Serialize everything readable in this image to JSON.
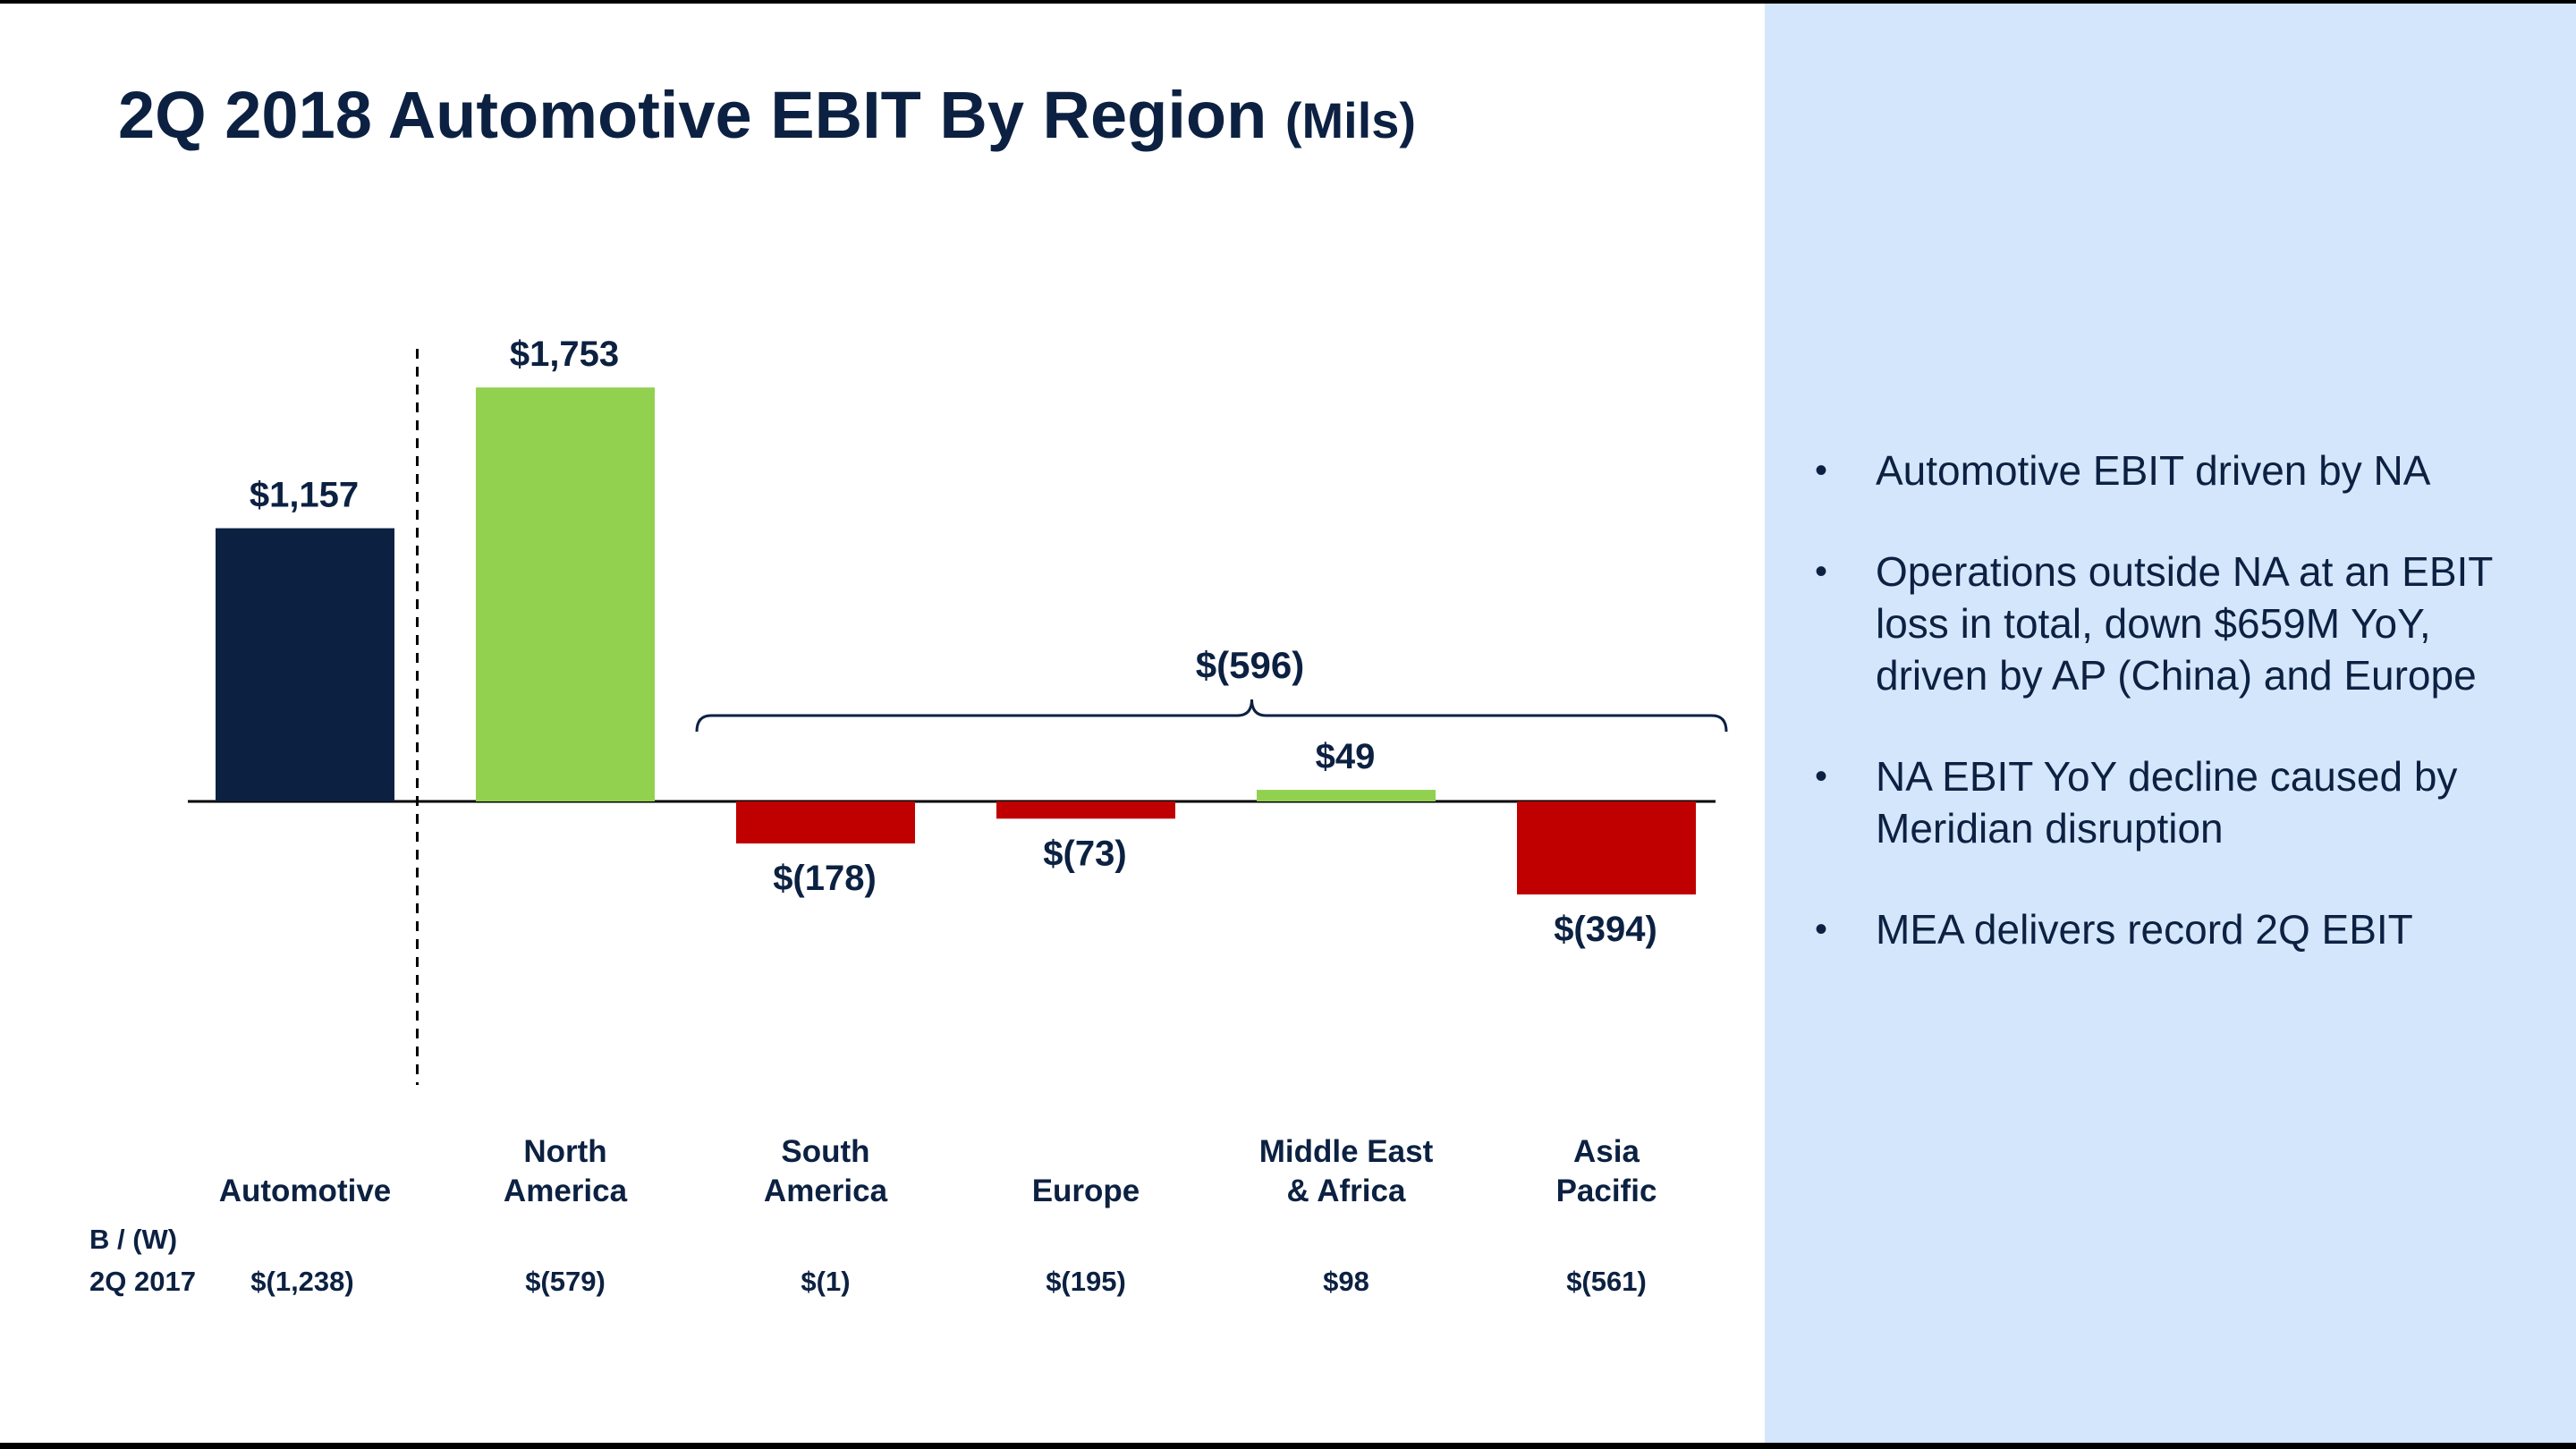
{
  "header": {
    "title": "2Q 2018 Automotive EBIT By Region",
    "title_unit": "(Mils)"
  },
  "chart_data": {
    "type": "bar",
    "categories": [
      "Automotive",
      "North America",
      "South America",
      "Europe",
      "Middle East & Africa",
      "Asia Pacific"
    ],
    "category_lines": [
      [
        "",
        "Automotive"
      ],
      [
        "North",
        "America"
      ],
      [
        "South",
        "America"
      ],
      [
        "",
        "Europe"
      ],
      [
        "Middle East",
        "& Africa"
      ],
      [
        "Asia",
        "Pacific"
      ]
    ],
    "values": [
      1157,
      1753,
      -178,
      -73,
      49,
      -394
    ],
    "data_labels": [
      "$1,157",
      "$1,753",
      "$(178)",
      "$(73)",
      "$49",
      "$(394)"
    ],
    "bar_colors": [
      "#0c2142",
      "#92d050",
      "#c00000",
      "#c00000",
      "#92d050",
      "#c00000"
    ],
    "annotation": {
      "label": "$(596)",
      "spans_categories": [
        "South America",
        "Europe",
        "Middle East & Africa",
        "Asia Pacific"
      ]
    },
    "separator_after": "Automotive",
    "comparison": {
      "label_line1": "B / (W)",
      "label_line2": "2Q 2017",
      "values": [
        "$(1,238)",
        "$(579)",
        "$(1)",
        "$(195)",
        "$98",
        "$(561)"
      ]
    },
    "ylim": [
      -1000,
      2000
    ],
    "grid": false,
    "legend": "none"
  },
  "sidebar": {
    "bullet_symbol": "•",
    "bullets": [
      "Automotive EBIT driven by NA",
      "Operations outside NA at an EBIT loss in total, down $659M YoY, driven by AP (China) and Europe",
      "NA EBIT YoY decline caused by Meridian disruption",
      "MEA delivers record 2Q EBIT"
    ]
  }
}
